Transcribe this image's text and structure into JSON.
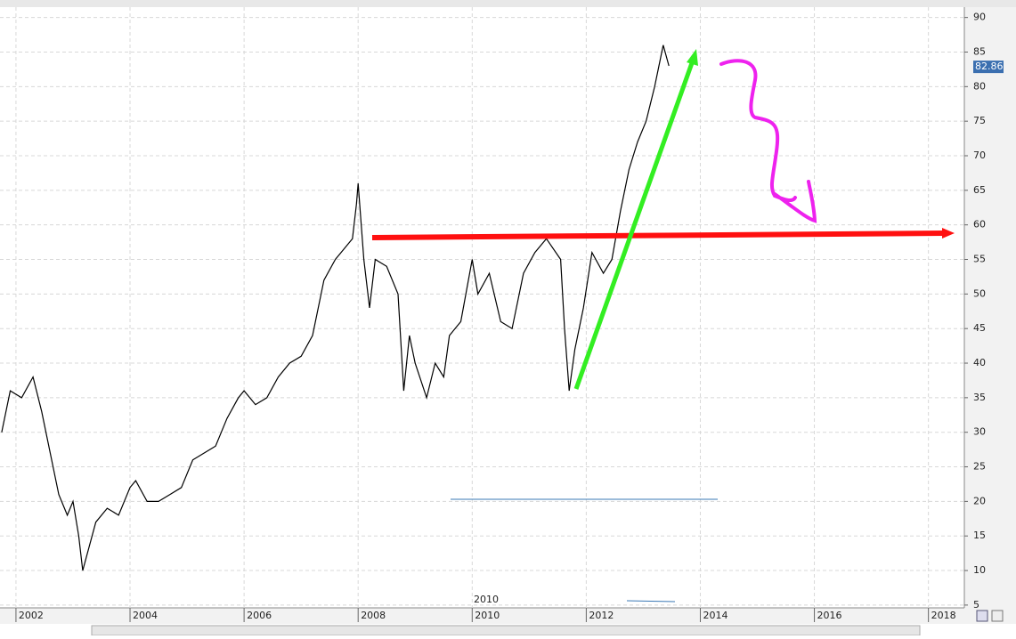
{
  "chart_data": {
    "type": "line",
    "x": [
      2001.75,
      2001.9,
      2002.1,
      2002.3,
      2002.45,
      2002.6,
      2002.75,
      2002.9,
      2003.0,
      2003.1,
      2003.17,
      2003.4,
      2003.6,
      2003.8,
      2004.0,
      2004.1,
      2004.3,
      2004.5,
      2004.7,
      2004.9,
      2005.1,
      2005.3,
      2005.5,
      2005.7,
      2005.9,
      2006.0,
      2006.2,
      2006.4,
      2006.6,
      2006.8,
      2007.0,
      2007.2,
      2007.4,
      2007.6,
      2007.8,
      2007.9,
      2007.97,
      2008.0,
      2008.1,
      2008.2,
      2008.3,
      2008.5,
      2008.7,
      2008.8,
      2008.9,
      2009.0,
      2009.2,
      2009.35,
      2009.5,
      2009.6,
      2009.8,
      2010.0,
      2010.1,
      2010.3,
      2010.5,
      2010.7,
      2010.9,
      2011.1,
      2011.3,
      2011.55,
      2011.62,
      2011.7,
      2011.8,
      2011.95,
      2012.1,
      2012.3,
      2012.45,
      2012.6,
      2012.75,
      2012.9,
      2013.05,
      2013.2,
      2013.35,
      2013.45
    ],
    "series": [
      {
        "color": "#000000",
        "values": [
          30,
          36,
          35,
          38,
          33,
          27,
          21,
          18,
          20,
          15,
          10,
          17,
          19,
          18,
          22,
          23,
          20,
          20,
          21,
          22,
          26,
          27,
          28,
          32,
          35,
          36,
          34,
          35,
          38,
          40,
          41,
          44,
          52,
          55,
          57,
          58,
          63,
          66,
          55,
          48,
          55,
          54,
          50,
          36,
          44,
          40,
          35,
          40,
          38,
          44,
          46,
          55,
          50,
          53,
          46,
          45,
          53,
          56,
          58,
          55,
          45,
          36,
          42,
          48,
          56,
          53,
          55,
          62,
          68,
          72,
          75,
          80,
          86,
          83
        ]
      }
    ],
    "xlim": [
      2001.72,
      2018.63
    ],
    "xticks": [
      2002,
      2004,
      2006,
      2008,
      2010,
      2012,
      2014,
      2016,
      2018
    ],
    "ylim": [
      4.6,
      91.5
    ],
    "yticks": [
      5,
      10,
      15,
      20,
      25,
      30,
      35,
      40,
      45,
      50,
      55,
      60,
      65,
      70,
      75,
      80,
      85,
      90
    ],
    "last_value": 82.86,
    "annotation": "2010",
    "grid": true
  }
}
